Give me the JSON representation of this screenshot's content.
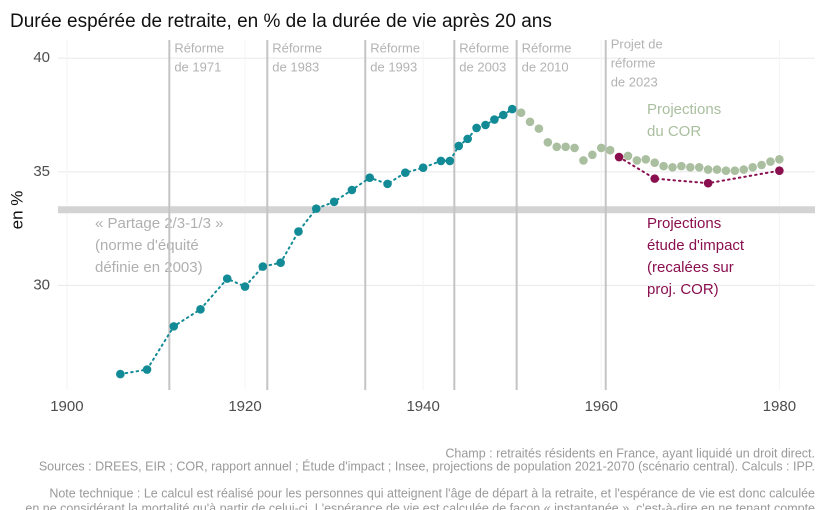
{
  "chart_data": {
    "type": "scatter",
    "title": "Durée espérée de retraite, en % de la durée de vie après 20 ans",
    "y_label": "en %",
    "xlim": [
      1899,
      1984
    ],
    "ylim": [
      25.4,
      40.8
    ],
    "xticks": [
      1900,
      1920,
      1940,
      1960,
      1980
    ],
    "yticks": [
      30,
      35,
      40
    ],
    "grid": true,
    "series": [
      {
        "color": "#138b97",
        "line": "dotted",
        "x": [
          1906,
          1909,
          1912,
          1915,
          1918,
          1920,
          1922,
          1924,
          1926,
          1928,
          1930,
          1932,
          1934,
          1936,
          1938,
          1940,
          1942,
          1943,
          1944,
          1945,
          1946,
          1947,
          1948,
          1949,
          1950
        ],
        "values": [
          26.1,
          26.3,
          28.2,
          28.95,
          30.3,
          29.95,
          30.83,
          31.0,
          32.37,
          33.38,
          33.68,
          34.2,
          34.74,
          34.47,
          34.96,
          35.18,
          35.48,
          35.48,
          36.14,
          36.45,
          36.93,
          37.06,
          37.3,
          37.5,
          37.76
        ]
      },
      {
        "color": "#aabf9f",
        "line": "none",
        "x": [
          1951,
          1952,
          1953,
          1954,
          1955,
          1956,
          1957,
          1958,
          1959,
          1960,
          1961,
          1962,
          1963,
          1964,
          1965,
          1966,
          1967,
          1968,
          1969,
          1970,
          1971,
          1972,
          1973,
          1974,
          1975,
          1976,
          1977,
          1978,
          1979,
          1980
        ],
        "values": [
          37.6,
          37.2,
          36.9,
          36.3,
          36.1,
          36.1,
          36.05,
          35.5,
          35.75,
          36.05,
          35.95,
          35.65,
          35.7,
          35.5,
          35.55,
          35.4,
          35.25,
          35.2,
          35.25,
          35.2,
          35.2,
          35.1,
          35.1,
          35.05,
          35.05,
          35.1,
          35.2,
          35.3,
          35.45,
          35.55
        ]
      },
      {
        "color": "#8a0f4f",
        "line": "dotted",
        "x": [
          1962,
          1966,
          1972,
          1980
        ],
        "values": [
          35.65,
          34.7,
          34.5,
          35.05
        ]
      }
    ],
    "reference_line": {
      "value": 33.33,
      "label": [
        "« Partage 2/3-1/3 »",
        "(norme d'équité",
        "définie en 2003)"
      ]
    },
    "reforms": [
      {
        "x": 1911.5,
        "label": [
          "Réforme",
          "de 1971"
        ]
      },
      {
        "x": 1922.5,
        "label": [
          "Réforme",
          "de 1983"
        ]
      },
      {
        "x": 1933.5,
        "label": [
          "Réforme",
          "de 1993"
        ]
      },
      {
        "x": 1943.5,
        "label": [
          "Réforme",
          "de 2003"
        ]
      },
      {
        "x": 1950.5,
        "label": [
          "Réforme",
          "de 2010"
        ]
      },
      {
        "x": 1960.5,
        "label": [
          "Projet de",
          "réforme",
          "de 2023"
        ]
      }
    ],
    "annotations": [
      {
        "color": "#aabf9f",
        "lines": [
          "Projections",
          "du COR"
        ]
      },
      {
        "color": "#8a0f4f",
        "lines": [
          "Projections",
          "étude d'impact",
          "(recalées sur",
          "proj. COR)"
        ]
      }
    ],
    "footnotes": [
      "Champ : retraités résidents en France, ayant liquidé un droit direct.",
      "Sources : DREES, EIR ; COR, rapport annuel ; Étude d'impact ; Insee, projections de population 2021-2070 (scénario central). Calculs : IPP.",
      "Note technique : Le calcul est réalisé pour les personnes qui atteignent l'âge de départ à la retraite, et l'espérance de vie est donc calculée",
      "en ne considérant la mortalité qu'à partir de celui-ci. L'espérance de vie est calculée de façon « instantanée », c'est-à-dire en ne tenant compte"
    ]
  }
}
